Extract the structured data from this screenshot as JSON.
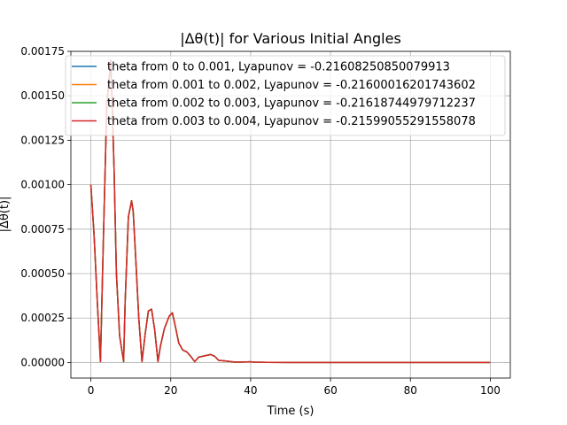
{
  "chart_data": {
    "type": "line",
    "title": "|Δθ(t)| for Various Initial Angles",
    "xlabel": "Time (s)",
    "ylabel": "|Δθ(t)|",
    "xlim": [
      -5,
      105
    ],
    "ylim": [
      -8.75e-05,
      0.00175
    ],
    "xticks": [
      0,
      20,
      40,
      60,
      80,
      100
    ],
    "xtick_labels": [
      "0",
      "20",
      "40",
      "60",
      "80",
      "100"
    ],
    "yticks": [
      0,
      0.00025,
      0.0005,
      0.00075,
      0.001,
      0.00125,
      0.0015,
      0.00175
    ],
    "ytick_labels": [
      "0.00000",
      "0.00025",
      "0.00050",
      "0.00075",
      "0.00100",
      "0.00125",
      "0.00150",
      "0.00175"
    ],
    "grid": true,
    "legend_position": "upper-left",
    "x": [
      0,
      0.8,
      1.6,
      2.4,
      3.2,
      4.0,
      5.0,
      5.8,
      6.4,
      7.2,
      8.2,
      8.6,
      9.4,
      10.2,
      10.6,
      11.2,
      12.0,
      12.8,
      13.6,
      14.4,
      15.2,
      16.0,
      16.8,
      17.4,
      18.4,
      19.6,
      20.4,
      21.0,
      22.0,
      23.0,
      24.0,
      25.0,
      26.0,
      27.0,
      28.0,
      29.0,
      30.0,
      31.0,
      32.0,
      33.0,
      34.0,
      35.0,
      36.0,
      38.0,
      40.0,
      41.0,
      44.0,
      50.0,
      60.0,
      70.0,
      80.0,
      90.0,
      100.0
    ],
    "series": [
      {
        "name": "theta from 0 to 0.001, Lyapunov = -0.21608250850079913",
        "color": "#1f77b4",
        "values": [
          0.001,
          0.00072,
          0.00035,
          5e-06,
          0.00075,
          0.00145,
          0.0017,
          0.0011,
          0.0005,
          0.00015,
          5e-06,
          0.00035,
          0.00082,
          0.00091,
          0.00085,
          0.0006,
          0.00025,
          5e-06,
          0.00016,
          0.00029,
          0.0003,
          0.00018,
          5e-06,
          9e-05,
          0.00019,
          0.00026,
          0.00028,
          0.00022,
          0.00011,
          7e-05,
          6e-05,
          3.5e-05,
          5e-06,
          3e-05,
          3.5e-05,
          4e-05,
          4.5e-05,
          3.5e-05,
          1.2e-05,
          1e-05,
          8e-06,
          5e-06,
          2e-06,
          3e-06,
          4e-06,
          2e-06,
          1e-06,
          5e-07,
          3e-07,
          2e-07,
          1e-07,
          1e-07,
          1e-07
        ]
      },
      {
        "name": "theta from 0.001 to 0.002, Lyapunov = -0.21600016201743602",
        "color": "#ff7f0e",
        "values": [
          0.001,
          0.00072,
          0.00035,
          5e-06,
          0.00075,
          0.00145,
          0.0017,
          0.0011,
          0.0005,
          0.00015,
          5e-06,
          0.00035,
          0.00082,
          0.00091,
          0.00085,
          0.0006,
          0.00025,
          5e-06,
          0.00016,
          0.00029,
          0.0003,
          0.00018,
          5e-06,
          9e-05,
          0.00019,
          0.00026,
          0.00028,
          0.00022,
          0.00011,
          7e-05,
          6e-05,
          3.5e-05,
          5e-06,
          3e-05,
          3.5e-05,
          4e-05,
          4.5e-05,
          3.5e-05,
          1.2e-05,
          1e-05,
          8e-06,
          5e-06,
          2e-06,
          3e-06,
          4e-06,
          2e-06,
          1e-06,
          5e-07,
          3e-07,
          2e-07,
          1e-07,
          1e-07,
          1e-07
        ]
      },
      {
        "name": "theta from 0.002 to 0.003, Lyapunov = -0.21618744979712237",
        "color": "#2ca02c",
        "values": [
          0.001,
          0.00072,
          0.00035,
          5e-06,
          0.00075,
          0.00145,
          0.0017,
          0.0011,
          0.0005,
          0.00015,
          5e-06,
          0.00035,
          0.00082,
          0.00091,
          0.00085,
          0.0006,
          0.00025,
          5e-06,
          0.00016,
          0.00029,
          0.0003,
          0.00018,
          5e-06,
          9e-05,
          0.00019,
          0.00026,
          0.00028,
          0.00022,
          0.00011,
          7e-05,
          6e-05,
          3.5e-05,
          5e-06,
          3e-05,
          3.5e-05,
          4e-05,
          4.5e-05,
          3.5e-05,
          1.2e-05,
          1e-05,
          8e-06,
          5e-06,
          2e-06,
          3e-06,
          4e-06,
          2e-06,
          1e-06,
          5e-07,
          3e-07,
          2e-07,
          1e-07,
          1e-07,
          1e-07
        ]
      },
      {
        "name": "theta from 0.003 to 0.004, Lyapunov = -0.21599055291558078",
        "color": "#d62728",
        "values": [
          0.001,
          0.00072,
          0.00035,
          5e-06,
          0.00075,
          0.00145,
          0.0017,
          0.0011,
          0.0005,
          0.00015,
          5e-06,
          0.00035,
          0.00082,
          0.00091,
          0.00085,
          0.0006,
          0.00025,
          5e-06,
          0.00016,
          0.00029,
          0.0003,
          0.00018,
          5e-06,
          9e-05,
          0.00019,
          0.00026,
          0.00028,
          0.00022,
          0.00011,
          7e-05,
          6e-05,
          3.5e-05,
          5e-06,
          3e-05,
          3.5e-05,
          4e-05,
          4.5e-05,
          3.5e-05,
          1.2e-05,
          1e-05,
          8e-06,
          5e-06,
          2e-06,
          3e-06,
          4e-06,
          2e-06,
          1e-06,
          5e-07,
          3e-07,
          2e-07,
          1e-07,
          1e-07,
          1e-07
        ]
      }
    ]
  }
}
